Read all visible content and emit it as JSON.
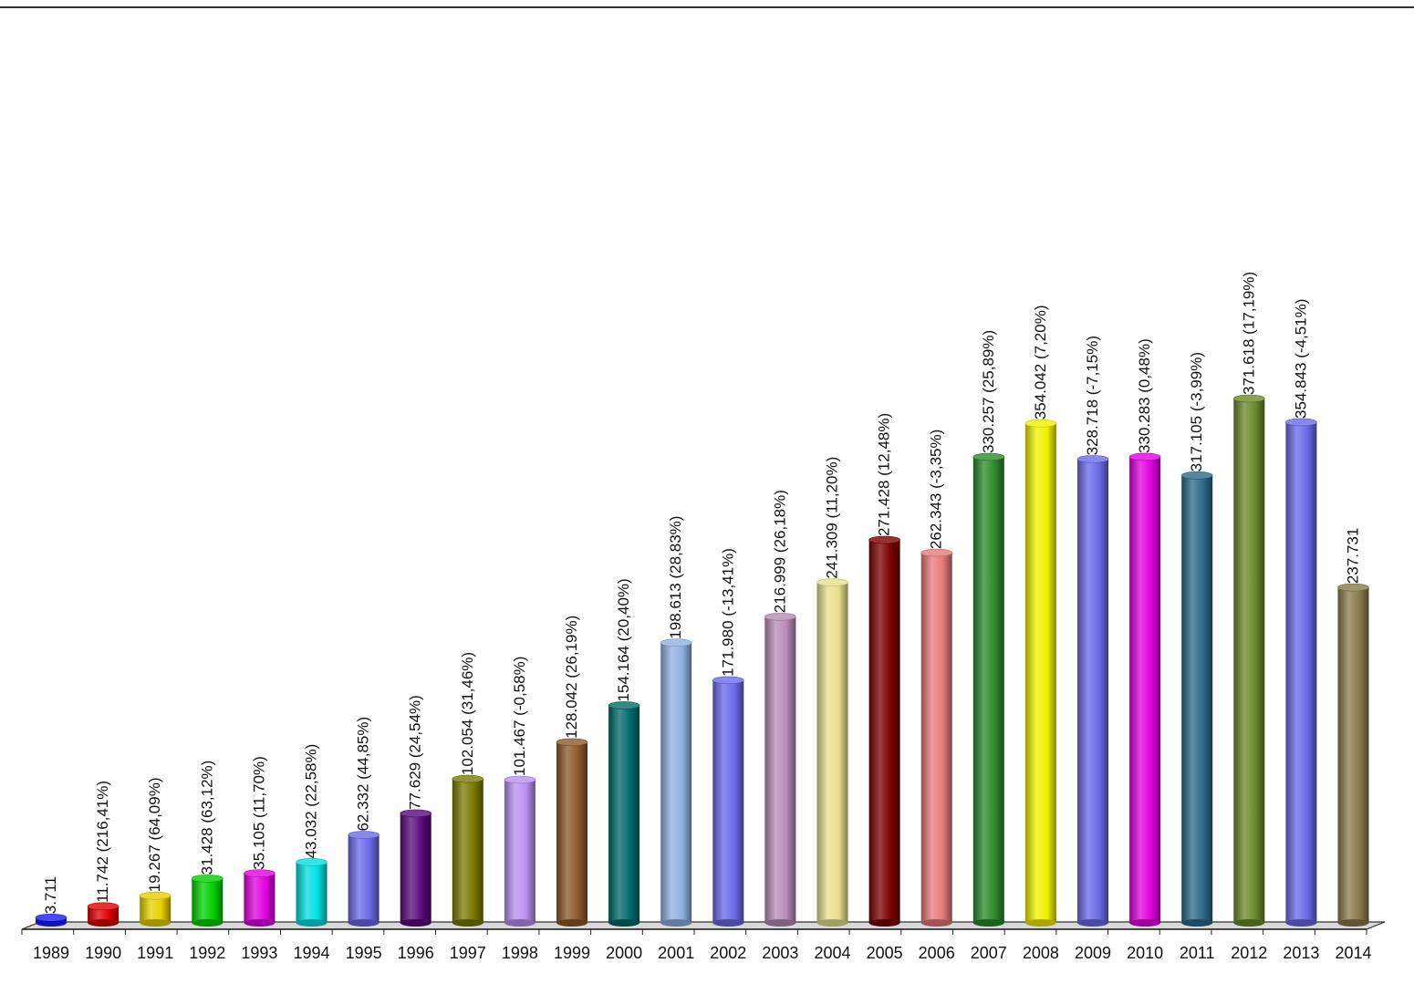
{
  "chart_data": {
    "type": "bar",
    "title": "",
    "xlabel": "",
    "ylabel": "",
    "ylim": [
      0,
      400000
    ],
    "grid": false,
    "legend": "none",
    "categories": [
      "1989",
      "1990",
      "1991",
      "1992",
      "1993",
      "1994",
      "1995",
      "1996",
      "1997",
      "1998",
      "1999",
      "2000",
      "2001",
      "2002",
      "2003",
      "2004",
      "2005",
      "2006",
      "2007",
      "2008",
      "2009",
      "2010",
      "2011",
      "2012",
      "2013",
      "2014"
    ],
    "values": [
      3711,
      11742,
      19267,
      31428,
      35105,
      43032,
      62332,
      77629,
      102054,
      101467,
      128042,
      154164,
      198613,
      171980,
      216999,
      241309,
      271428,
      262343,
      330257,
      354042,
      328718,
      330283,
      317105,
      371618,
      354843,
      237731
    ],
    "data_labels": [
      "3.711",
      "11.742 (216,41%)",
      "19.267 (64,09%)",
      "31.428 (63,12%)",
      "35.105 (11,70%)",
      "43.032 (22,58%)",
      "62.332 (44,85%)",
      "77.629 (24,54%)",
      "102.054 (31,46%)",
      "101.467 (-0,58%)",
      "128.042 (26,19%)",
      "154.164 (20,40%)",
      "198.613 (28,83%)",
      "171.980 (-13,41%)",
      "216.999 (26,18%)",
      "241.309 (11,20%)",
      "271.428 (12,48%)",
      "262.343 (-3,35%)",
      "330.257 (25,89%)",
      "354.042 (7,20%)",
      "328.718 (-7,15%)",
      "330.283 (0,48%)",
      "317.105 (-3,99%)",
      "371.618 (17,19%)",
      "354.843 (-4,51%)",
      "237.731"
    ],
    "colors": [
      "#1a1aff",
      "#e00000",
      "#e6d000",
      "#00d000",
      "#e000e0",
      "#00e0e0",
      "#6a6ae8",
      "#5a0a7a",
      "#7a7a00",
      "#b890f0",
      "#8a5a2a",
      "#006a6a",
      "#90b0e0",
      "#6a6ae8",
      "#b88ab8",
      "#e8e08a",
      "#7a0000",
      "#e87a7a",
      "#2a8a2a",
      "#f0f000",
      "#6a6ae8",
      "#e000e0",
      "#2a6a8a",
      "#6a8a2a",
      "#6a6ae8",
      "#8a7a4a"
    ]
  }
}
